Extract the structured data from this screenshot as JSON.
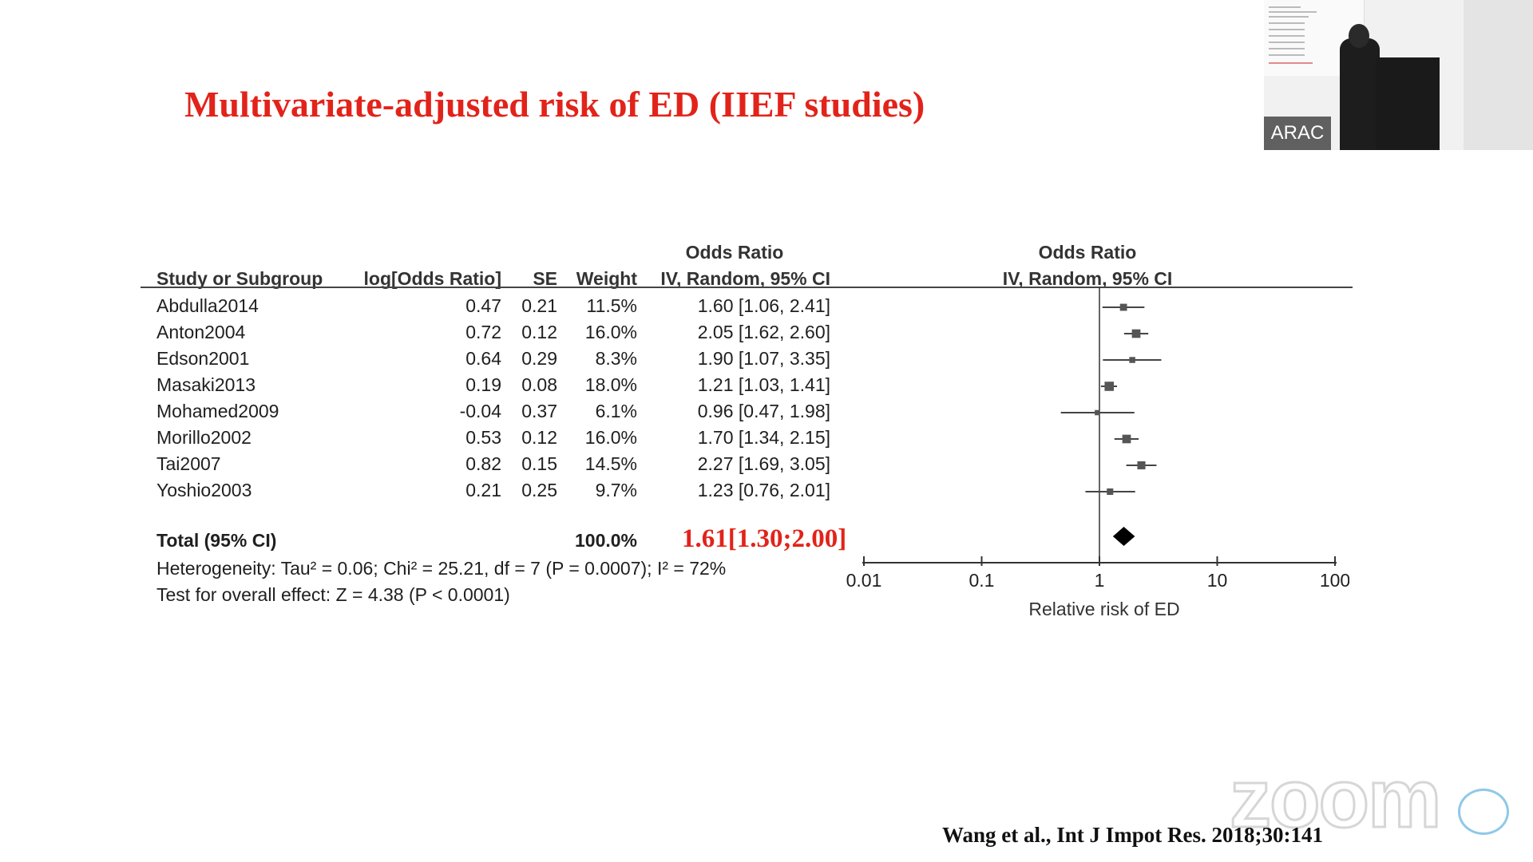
{
  "slide": {
    "title": "Multivariate-adjusted risk of ED (IIEF studies)",
    "citation": "Wang et al.,  Int J Impot Res. 2018;30:141"
  },
  "forest": {
    "headers": {
      "study": "Study or Subgroup",
      "logor": "log[Odds Ratio]",
      "se": "SE",
      "weight": "Weight",
      "or_top": "Odds Ratio",
      "or_bottom": "IV, Random, 95% CI",
      "plot_top": "Odds Ratio",
      "plot_bottom": "IV, Random, 95% CI"
    },
    "total": {
      "label": "Total (95% CI)",
      "weight": "100.0%",
      "estimate": "1.61[1.30;2.00]"
    },
    "heterogeneity": "Heterogeneity: Tau² = 0.06; Chi² = 25.21, df = 7 (P = 0.0007); I² = 72%",
    "overall_effect": "Test for overall effect: Z = 4.38 (P < 0.0001)"
  },
  "chart_data": {
    "type": "scatter",
    "xlabel": "Relative risk of ED",
    "log_scale": true,
    "xlim": [
      0.01,
      100
    ],
    "xticks": [
      "0.01",
      "0.1",
      "1",
      "10",
      "100"
    ],
    "reference_line": 1,
    "studies": [
      {
        "name": "Abdulla2014",
        "logor": "0.47",
        "se": "0.21",
        "weight": "11.5%",
        "ci_text": "1.60 [1.06, 2.41]",
        "or": 1.6,
        "lo": 1.06,
        "hi": 2.41
      },
      {
        "name": "Anton2004",
        "logor": "0.72",
        "se": "0.12",
        "weight": "16.0%",
        "ci_text": "2.05 [1.62, 2.60]",
        "or": 2.05,
        "lo": 1.62,
        "hi": 2.6
      },
      {
        "name": "Edson2001",
        "logor": "0.64",
        "se": "0.29",
        "weight": "8.3%",
        "ci_text": "1.90 [1.07, 3.35]",
        "or": 1.9,
        "lo": 1.07,
        "hi": 3.35
      },
      {
        "name": "Masaki2013",
        "logor": "0.19",
        "se": "0.08",
        "weight": "18.0%",
        "ci_text": "1.21 [1.03, 1.41]",
        "or": 1.21,
        "lo": 1.03,
        "hi": 1.41
      },
      {
        "name": "Mohamed2009",
        "logor": "-0.04",
        "se": "0.37",
        "weight": "6.1%",
        "ci_text": "0.96 [0.47, 1.98]",
        "or": 0.96,
        "lo": 0.47,
        "hi": 1.98
      },
      {
        "name": "Morillo2002",
        "logor": "0.53",
        "se": "0.12",
        "weight": "16.0%",
        "ci_text": "1.70 [1.34, 2.15]",
        "or": 1.7,
        "lo": 1.34,
        "hi": 2.15
      },
      {
        "name": "Tai2007",
        "logor": "0.82",
        "se": "0.15",
        "weight": "14.5%",
        "ci_text": "2.27 [1.69, 3.05]",
        "or": 2.27,
        "lo": 1.69,
        "hi": 3.05
      },
      {
        "name": "Yoshio2003",
        "logor": "0.21",
        "se": "0.25",
        "weight": "9.7%",
        "ci_text": "1.23 [0.76, 2.01]",
        "or": 1.23,
        "lo": 0.76,
        "hi": 2.01
      }
    ],
    "pooled": {
      "or": 1.61,
      "lo": 1.3,
      "hi": 2.0
    }
  },
  "video": {
    "participant_name": "ARAC",
    "watermark": "zoom"
  },
  "colors": {
    "title": "#e2231a",
    "text": "#1f1f1f",
    "background": "#ffffff"
  }
}
